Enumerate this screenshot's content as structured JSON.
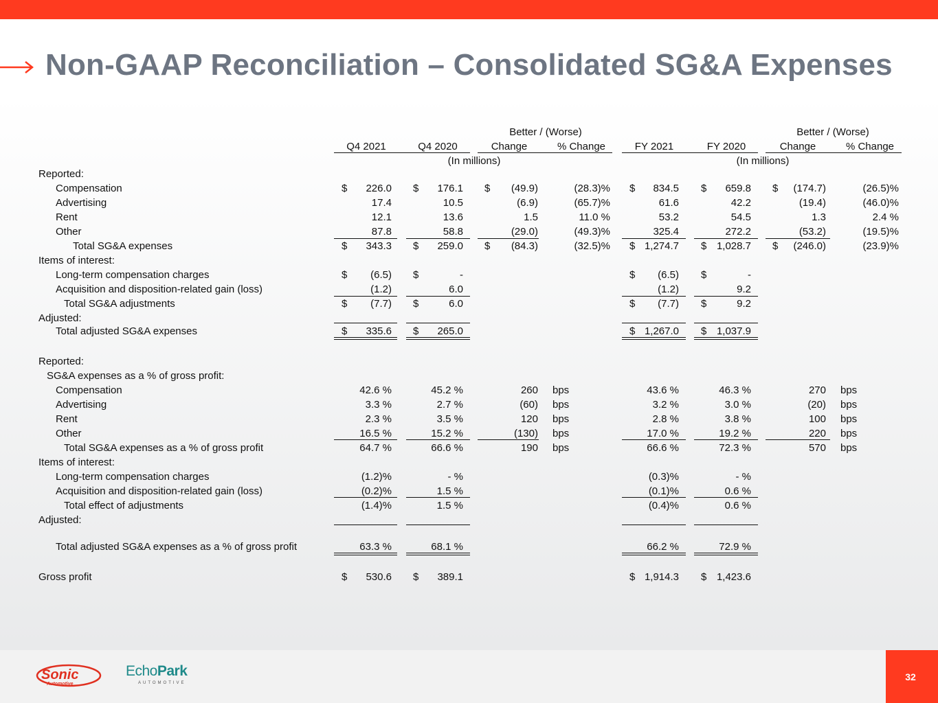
{
  "title": "Non-GAAP Reconciliation – Consolidated SG&A Expenses",
  "page_number": "32",
  "brand": {
    "primary_color": "#ff3a1f",
    "title_color": "#6d7582"
  },
  "logos": {
    "sonic": "Sonic Automotive",
    "echopark_word_a": "Echo",
    "echopark_word_b": "Park",
    "echopark_sub": "AUTOMOTIVE"
  },
  "table": {
    "group_header": "Better / (Worse)",
    "columns": [
      "Q4 2021",
      "Q4 2020",
      "Change",
      "% Change",
      "FY 2021",
      "FY 2020",
      "Change",
      "% Change"
    ],
    "units_note": "(In millions)",
    "rows": [
      {
        "label": "Reported:",
        "indent": 0,
        "v": []
      },
      {
        "label": "Compensation",
        "indent": 1,
        "v": [
          "226.0",
          "176.1",
          "(49.9)",
          "(28.3)%",
          "834.5",
          "659.8",
          "(174.7)",
          "(26.5)%"
        ],
        "d": [
          1,
          1,
          1,
          0,
          1,
          1,
          1,
          0
        ]
      },
      {
        "label": "Advertising",
        "indent": 1,
        "v": [
          "17.4",
          "10.5",
          "(6.9)",
          "(65.7)%",
          "61.6",
          "42.2",
          "(19.4)",
          "(46.0)%"
        ]
      },
      {
        "label": "Rent",
        "indent": 1,
        "v": [
          "12.1",
          "13.6",
          "1.5",
          "11.0 %",
          "53.2",
          "54.5",
          "1.3",
          "2.4 %"
        ]
      },
      {
        "label": "Other",
        "indent": 1,
        "v": [
          "87.8",
          "58.8",
          "(29.0)",
          "(49.3)%",
          "325.4",
          "272.2",
          "(53.2)",
          "(19.5)%"
        ]
      },
      {
        "label": "Total SG&A expenses",
        "indent": 3,
        "v": [
          "343.3",
          "259.0",
          "(84.3)",
          "(32.5)%",
          "1,274.7",
          "1,028.7",
          "(246.0)",
          "(23.9)%"
        ],
        "d": [
          1,
          1,
          1,
          0,
          1,
          1,
          1,
          0
        ]
      },
      {
        "label": "Items of interest:",
        "indent": 0,
        "v": []
      },
      {
        "label": "Long-term compensation charges",
        "indent": 1,
        "v": [
          "(6.5)",
          "-",
          "",
          "",
          "(6.5)",
          "-",
          "",
          ""
        ],
        "d": [
          1,
          1,
          0,
          0,
          1,
          1,
          0,
          0
        ]
      },
      {
        "label": "Acquisition and disposition-related gain (loss)",
        "indent": 1,
        "v": [
          "(1.2)",
          "6.0",
          "",
          "",
          "(1.2)",
          "9.2",
          "",
          ""
        ]
      },
      {
        "label": "Total SG&A adjustments",
        "indent": 2,
        "v": [
          "(7.7)",
          "6.0",
          "",
          "",
          "(7.7)",
          "9.2",
          "",
          ""
        ],
        "d": [
          1,
          1,
          0,
          0,
          1,
          1,
          0,
          0
        ]
      },
      {
        "label": "Adjusted:",
        "indent": 0,
        "v": []
      },
      {
        "label": "Total adjusted SG&A expenses",
        "indent": 1,
        "v": [
          "335.6",
          "265.0",
          "",
          "",
          "1,267.0",
          "1,037.9",
          "",
          ""
        ],
        "d": [
          1,
          1,
          0,
          0,
          1,
          1,
          0,
          0
        ]
      },
      {
        "label": "Reported:",
        "indent": 0,
        "v": []
      },
      {
        "label": "SG&A expenses as a % of gross profit:",
        "indent": 0.5,
        "v": []
      },
      {
        "label": "Compensation",
        "indent": 1,
        "v": [
          "42.6 %",
          "45.2 %",
          "260",
          "bps",
          "43.6 %",
          "46.3 %",
          "270",
          "bps"
        ]
      },
      {
        "label": "Advertising",
        "indent": 1,
        "v": [
          "3.3 %",
          "2.7 %",
          "(60)",
          "bps",
          "3.2 %",
          "3.0 %",
          "(20)",
          "bps"
        ]
      },
      {
        "label": "Rent",
        "indent": 1,
        "v": [
          "2.3 %",
          "3.5 %",
          "120",
          "bps",
          "2.8 %",
          "3.8 %",
          "100",
          "bps"
        ]
      },
      {
        "label": "Other",
        "indent": 1,
        "v": [
          "16.5 %",
          "15.2 %",
          "(130)",
          "bps",
          "17.0 %",
          "19.2 %",
          "220",
          "bps"
        ]
      },
      {
        "label": "Total SG&A expenses as a % of gross profit",
        "indent": 2,
        "v": [
          "64.7 %",
          "66.6 %",
          "190",
          "bps",
          "66.6 %",
          "72.3 %",
          "570",
          "bps"
        ]
      },
      {
        "label": "Items of interest:",
        "indent": 0,
        "v": []
      },
      {
        "label": "Long-term compensation charges",
        "indent": 1,
        "v": [
          "(1.2)%",
          "- %",
          "",
          "",
          "(0.3)%",
          "- %",
          "",
          ""
        ]
      },
      {
        "label": "Acquisition and disposition-related gain (loss)",
        "indent": 1,
        "v": [
          "(0.2)%",
          "1.5 %",
          "",
          "",
          "(0.1)%",
          "0.6 %",
          "",
          ""
        ]
      },
      {
        "label": "Total effect of adjustments",
        "indent": 2,
        "v": [
          "(1.4)%",
          "1.5 %",
          "",
          "",
          "(0.4)%",
          "0.6 %",
          "",
          ""
        ]
      },
      {
        "label": "Adjusted:",
        "indent": 0,
        "v": []
      },
      {
        "label": "Total adjusted SG&A expenses as a % of gross profit",
        "indent": 1,
        "v": [
          "63.3 %",
          "68.1 %",
          "",
          "",
          "66.2 %",
          "72.9 %",
          "",
          ""
        ]
      },
      {
        "label": "Gross profit",
        "indent": 0,
        "v": [
          "530.6",
          "389.1",
          "",
          "",
          "1,914.3",
          "1,423.6",
          "",
          ""
        ],
        "d": [
          1,
          1,
          0,
          0,
          1,
          1,
          0,
          0
        ]
      }
    ]
  }
}
